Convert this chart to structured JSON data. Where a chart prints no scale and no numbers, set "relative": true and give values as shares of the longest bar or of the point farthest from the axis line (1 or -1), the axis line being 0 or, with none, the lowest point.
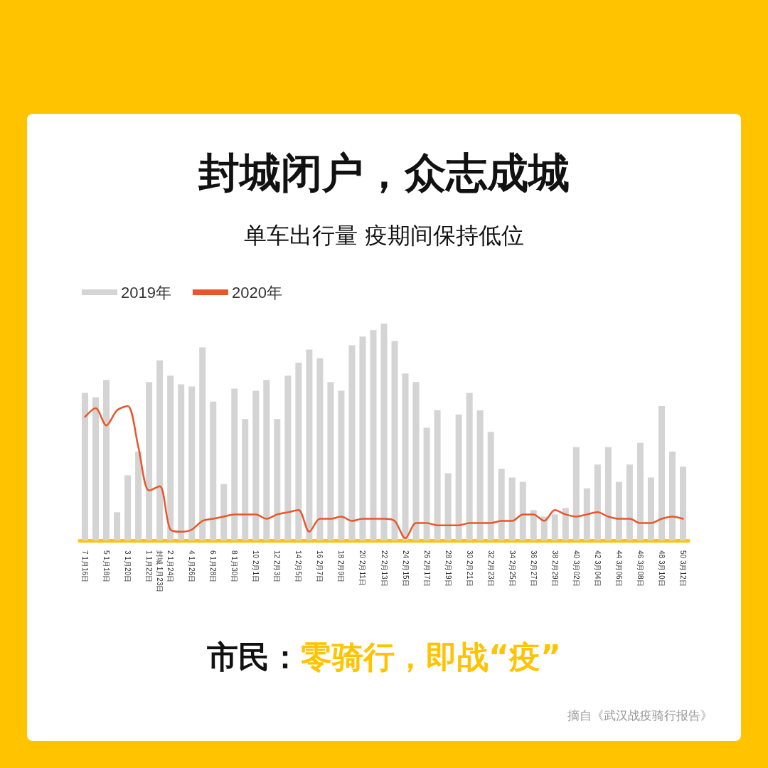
{
  "chart_data": {
    "type": "bar",
    "title": "封城闭户，众志成城",
    "subtitle": "单车出行量 疫期间保持低位",
    "categories": [
      "7 1月16日",
      null,
      "5 1月18日",
      null,
      "3 1月20日",
      null,
      "1 1月22日",
      "封城 1月23日",
      "2 1月24日",
      null,
      "4 1月26日",
      null,
      "6 1月28日",
      null,
      "8 1月30日",
      null,
      "10 2月1日",
      null,
      "12 2月3日",
      null,
      "14 2月5日",
      null,
      "16 2月7日",
      null,
      "18 2月9日",
      null,
      "20 2月11日",
      null,
      "22 2月13日",
      null,
      "24 2月15日",
      null,
      "26 2月17日",
      null,
      "28 2月19日",
      null,
      "30 2月21日",
      null,
      "32 2月23日",
      null,
      "34 2月25日",
      null,
      "36 2月27日",
      null,
      "38 2月29日",
      null,
      "40 3月02日",
      null,
      "42 3月04日",
      null,
      "44 3月06日",
      null,
      "46 3月08日",
      null,
      "48 3月10日",
      null,
      "50 3月12日"
    ],
    "series": [
      {
        "name": "2019年",
        "color": "#d4d4d4",
        "values": [
          0.68,
          0.66,
          0.74,
          0.13,
          0.3,
          0.41,
          0.73,
          0.83,
          0.76,
          0.72,
          0.71,
          0.89,
          0.64,
          0.26,
          0.7,
          0.56,
          0.69,
          0.74,
          0.56,
          0.76,
          0.82,
          0.88,
          0.84,
          0.73,
          0.69,
          0.9,
          0.94,
          0.97,
          1,
          0.92,
          0.77,
          0.73,
          0.52,
          0.6,
          0.31,
          0.58,
          0.68,
          0.6,
          0.5,
          0.33,
          0.29,
          0.27,
          0.14,
          0.11,
          0.12,
          0.15,
          0.43,
          0.24,
          0.35,
          0.43,
          0.27,
          0.35,
          0.45,
          0.29,
          0.62,
          0.41,
          0.34
        ]
      },
      {
        "name": "2020年",
        "type": "line",
        "color": "#e8572a",
        "values": [
          0.57,
          0.61,
          0.53,
          0.6,
          0.62,
          0.43,
          0.23,
          0.25,
          0.05,
          0.04,
          0.05,
          0.09,
          0.1,
          0.11,
          0.12,
          0.12,
          0.12,
          0.1,
          0.12,
          0.13,
          0.14,
          0.04,
          0.1,
          0.1,
          0.11,
          0.09,
          0.1,
          0.1,
          0.1,
          0.09,
          0.01,
          0.08,
          0.08,
          0.07,
          0.07,
          0.07,
          0.08,
          0.08,
          0.08,
          0.09,
          0.09,
          0.12,
          0.12,
          0.09,
          0.14,
          0.12,
          0.11,
          0.12,
          0.13,
          0.11,
          0.1,
          0.1,
          0.08,
          0.08,
          0.1,
          0.11,
          0.1
        ]
      }
    ],
    "relative": true,
    "legend": "top left",
    "marker": "none",
    "line_style": "solid",
    "annotations": [
      "市民：",
      "零骑行，即战“疫”",
      "摘自《武汉战疫骑行报告》"
    ]
  }
}
